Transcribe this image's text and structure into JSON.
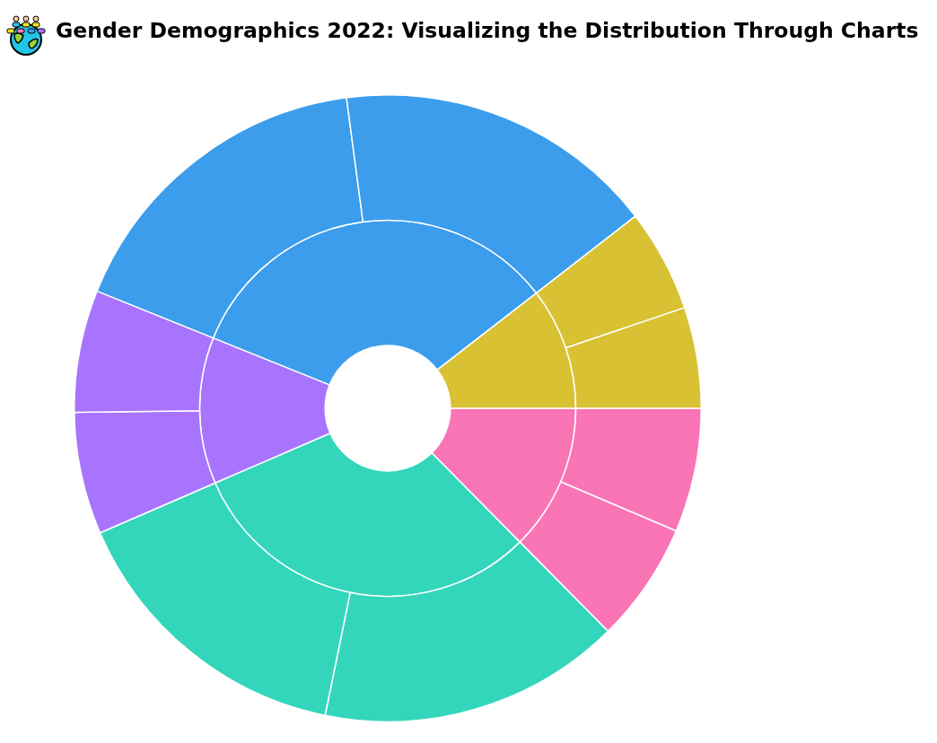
{
  "chart_data": {
    "type": "donut",
    "title": "Gender Demographics 2022: Visualizing the Distribution Through Charts",
    "legend": false,
    "series": [
      {
        "values": [
          12.6,
          30.9,
          12.6,
          33.4,
          10.5
        ],
        "colors": [
          "#f975b5",
          "#33d6bb",
          "#a874fe",
          "#3b9dec",
          "#d8c233"
        ]
      },
      {
        "values": [
          6.4,
          6.2,
          15.6,
          15.3,
          6.3,
          6.3,
          16.8,
          16.6,
          5.3,
          5.2
        ],
        "colors": [
          "#f975b5",
          "#f975b5",
          "#33d6bb",
          "#33d6bb",
          "#a874fe",
          "#a874fe",
          "#3b9dec",
          "#3b9dec",
          "#d8c233",
          "#d8c233"
        ]
      }
    ]
  }
}
